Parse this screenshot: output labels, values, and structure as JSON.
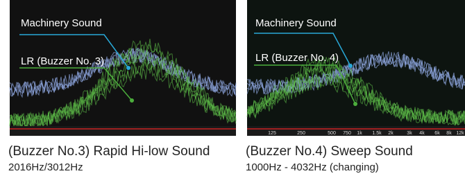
{
  "panels": [
    {
      "annotations": [
        "Machinery Sound",
        "LR (Buzzer No. 3)"
      ],
      "caption": {
        "title": "(Buzzer No.3) Rapid Hi-low Sound",
        "detail": "2016Hz/3012Hz"
      }
    },
    {
      "annotations": [
        "Machinery Sound",
        "LR (Buzzer No. 4)"
      ],
      "axis_labels": [
        "125",
        "250",
        "500",
        "750",
        "1k",
        "1.5k",
        "2k",
        "3k",
        "4k",
        "6k",
        "8k",
        "12k"
      ],
      "caption": {
        "title": "(Buzzer No.4) Sweep Sound",
        "detail": "1000Hz - 4032Hz (changing)"
      }
    }
  ]
}
